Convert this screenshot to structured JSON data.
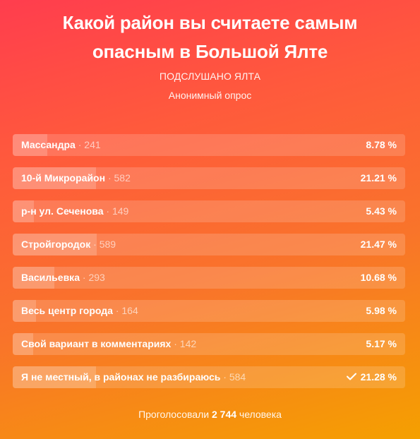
{
  "poll": {
    "title_line1": "Какой район вы считаете самым",
    "title_line2": "опасным в Большой Ялте",
    "group_name": "ПОДСЛУШАНО ЯЛТА",
    "poll_type": "Анонимный опрос",
    "options": [
      {
        "label": "Массандра",
        "votes": "241",
        "percent_text": "8.78 %",
        "percent": 8.78,
        "selected": false
      },
      {
        "label": "10-й Микрорайон",
        "votes": "582",
        "percent_text": "21.21 %",
        "percent": 21.21,
        "selected": false
      },
      {
        "label": "р-н ул. Сеченова",
        "votes": "149",
        "percent_text": "5.43 %",
        "percent": 5.43,
        "selected": false
      },
      {
        "label": "Стройгородок",
        "votes": "589",
        "percent_text": "21.47 %",
        "percent": 21.47,
        "selected": false
      },
      {
        "label": "Васильевка",
        "votes": "293",
        "percent_text": "10.68 %",
        "percent": 10.68,
        "selected": false
      },
      {
        "label": "Весь центр города",
        "votes": "164",
        "percent_text": "5.98 %",
        "percent": 5.98,
        "selected": false
      },
      {
        "label": "Свой вариант в комментариях",
        "votes": "142",
        "percent_text": "5.17 %",
        "percent": 5.17,
        "selected": false
      },
      {
        "label": "Я не местный, в районах не разбираюсь",
        "votes": "584",
        "percent_text": "21.28 %",
        "percent": 21.28,
        "selected": true
      }
    ],
    "total_prefix": "Проголосовали",
    "total_count": "2 744",
    "total_suffix": "человека",
    "vote_separator": "·",
    "check_icon": "checkmark-icon"
  }
}
